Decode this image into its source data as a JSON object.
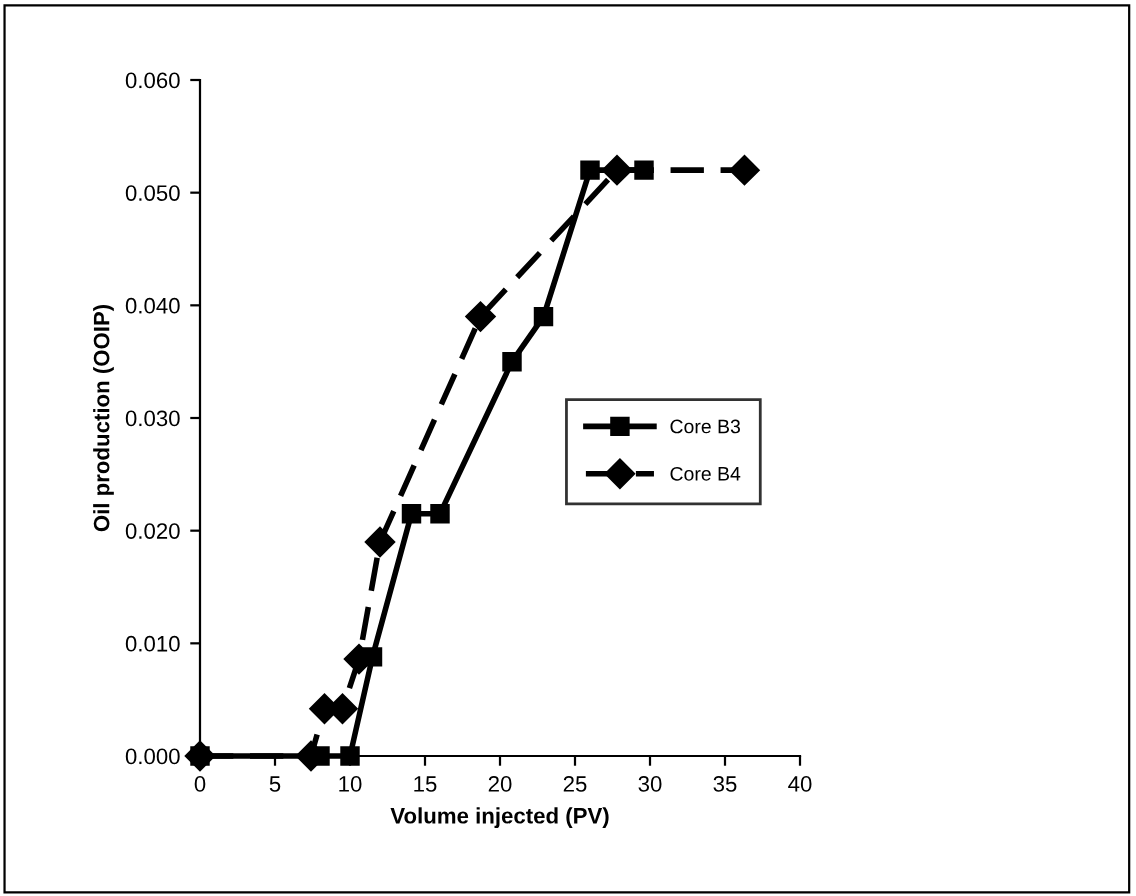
{
  "chart_data": {
    "type": "line",
    "xlabel": "Volume injected (PV)",
    "ylabel": "Oil production (OOIP)",
    "xlim": [
      0,
      40
    ],
    "xticks": [
      0,
      5,
      10,
      15,
      20,
      25,
      30,
      35,
      40
    ],
    "ylim": [
      0,
      0.06
    ],
    "yticks": [
      {
        "value": 0,
        "label": "0.000"
      },
      {
        "value": 0.01,
        "label": "0.010"
      },
      {
        "value": 0.02,
        "label": "0.020"
      },
      {
        "value": 0.03,
        "label": "0.030"
      },
      {
        "value": 0.04,
        "label": "0.040"
      },
      {
        "value": 0.05,
        "label": "0.050"
      },
      {
        "value": 0.06,
        "label": "0.060"
      }
    ],
    "grid": false,
    "legend": "right",
    "series": [
      {
        "name": "Core B3",
        "color": "#000000",
        "marker": "square",
        "line_style": "solid",
        "x": [
          0,
          8,
          10,
          11.5,
          14.1,
          16,
          20.8,
          22.9,
          26,
          29.6
        ],
        "values": [
          0,
          0,
          0,
          0.0088,
          0.0215,
          0.0215,
          0.035,
          0.039,
          0.052,
          0.052
        ]
      },
      {
        "name": "Core B4",
        "color": "#000000",
        "marker": "diamond",
        "line_style": "dashed",
        "x": [
          0,
          7.4,
          8.3,
          9.5,
          10.6,
          12,
          18.7,
          27.8,
          36.3
        ],
        "values": [
          0,
          0,
          0.0042,
          0.0042,
          0.0086,
          0.019,
          0.039,
          0.052,
          0.052
        ]
      }
    ]
  }
}
